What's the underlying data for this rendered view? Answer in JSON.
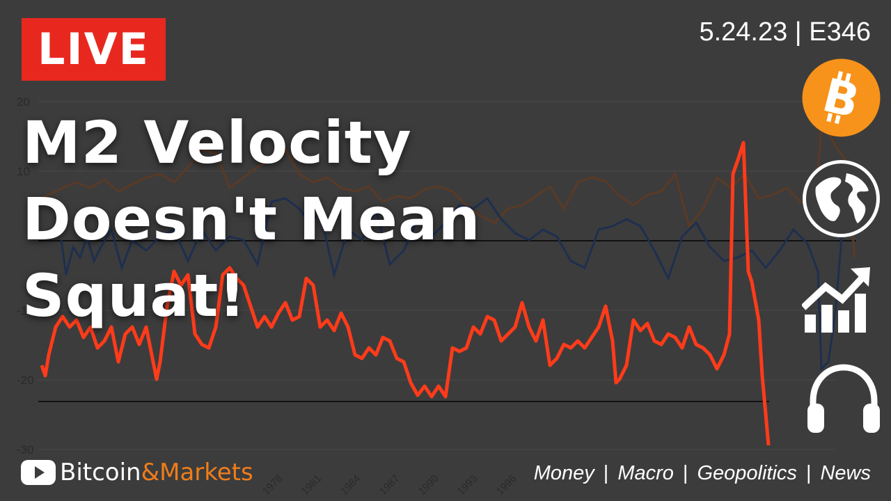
{
  "badge": {
    "label": "LIVE",
    "color": "#e8281f"
  },
  "episode": "5.24.23 | E346",
  "headline": {
    "line1": "M2 Velocity",
    "line2": "Doesn't Mean",
    "line3": "Squat!"
  },
  "chart_data": {
    "type": "line",
    "y_ticks": [
      "20",
      "10",
      "-1",
      "-20",
      "-30"
    ],
    "x_ticks": [
      "1978",
      "1981",
      "1984",
      "1987",
      "1990",
      "1993",
      "1996"
    ],
    "series_colors": {
      "m2": "#ff3b1a",
      "velocity": "#1e2f4f",
      "other": "#5a3a26"
    }
  },
  "icons": [
    "bitcoin-icon",
    "globe-icon",
    "growth-chart-icon",
    "headphones-icon"
  ],
  "brand": {
    "part1": "Bitcoin",
    "part2": "&Markets",
    "accent": "#f07d1a"
  },
  "topics": {
    "t1": "Money",
    "t2": "Macro",
    "t3": "Geopolitics",
    "t4": "News",
    "sep": "|"
  }
}
